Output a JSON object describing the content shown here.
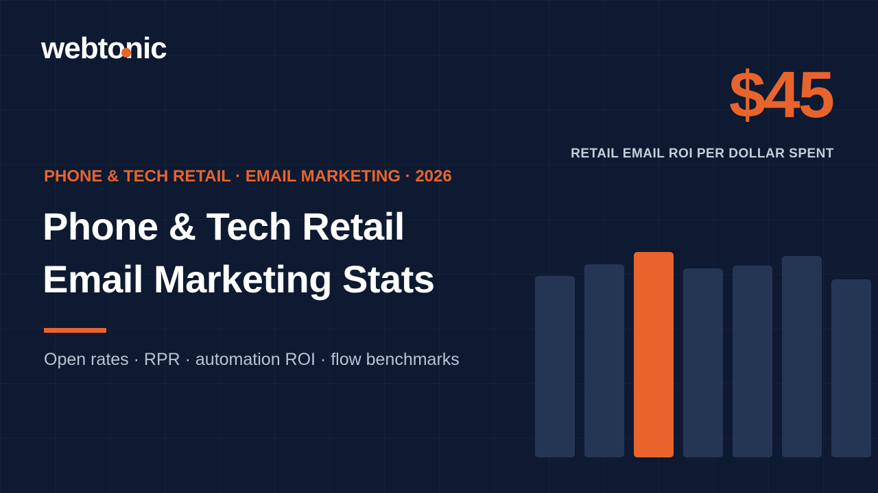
{
  "logo": "webtonic",
  "eyebrow": "PHONE & TECH RETAIL · EMAIL MARKETING · 2026",
  "title_lines": [
    "Phone & Tech Retail",
    "Email Marketing Stats"
  ],
  "subtitle": "Open rates · RPR · automation ROI · flow benchmarks",
  "stat": {
    "value": "$45",
    "label": "RETAIL EMAIL ROI PER DOLLAR SPENT"
  }
}
